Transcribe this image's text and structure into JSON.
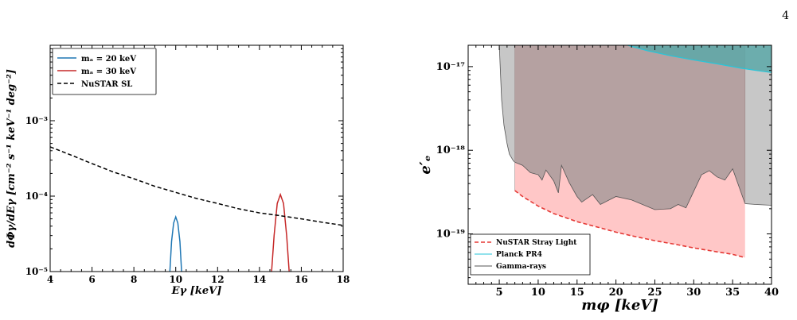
{
  "page_number": "4",
  "chart_data": [
    {
      "type": "line",
      "ylabel": "dΦγ/dEγ [cm⁻² s⁻¹ keV⁻¹ deg⁻²]",
      "xlabel": "Eγ [keV]",
      "xlim": [
        4,
        18
      ],
      "ylim": [
        1e-05,
        0.01
      ],
      "yscale": "log",
      "x_ticks": [
        "4",
        "6",
        "8",
        "10",
        "12",
        "14",
        "16",
        "18"
      ],
      "y_ticks": [
        "10⁻⁵",
        "10⁻⁴",
        "10⁻³"
      ],
      "legend_position": "top-left",
      "series": [
        {
          "name": "mₐ = 20 keV",
          "color": "#1f77b4",
          "style": "solid",
          "x": [
            9.72,
            9.8,
            9.9,
            10.0,
            10.1,
            10.2,
            10.28
          ],
          "y": [
            1e-05,
            2.5e-05,
            4.4e-05,
            5.3e-05,
            4.4e-05,
            2.5e-05,
            1e-05
          ]
        },
        {
          "name": "mₐ = 30 keV",
          "color": "#c62828",
          "style": "solid",
          "x": [
            14.58,
            14.7,
            14.85,
            15.0,
            15.15,
            15.3,
            15.42
          ],
          "y": [
            1e-05,
            3e-05,
            8e-05,
            0.000105,
            8e-05,
            3e-05,
            1e-05
          ]
        },
        {
          "name": "NuSTAR SL",
          "color": "#000000",
          "style": "dashed",
          "x": [
            4,
            5,
            6,
            7,
            8,
            9,
            10,
            11,
            12,
            13,
            14,
            15,
            16,
            17,
            18
          ],
          "y": [
            0.00045,
            0.00035,
            0.00027,
            0.00021,
            0.00017,
            0.000135,
            0.000112,
            9.3e-05,
            8e-05,
            6.8e-05,
            6e-05,
            5.5e-05,
            5e-05,
            4.5e-05,
            4.1e-05
          ]
        }
      ]
    },
    {
      "type": "area",
      "ylabel": "e′ₑ",
      "xlabel": "mφ [keV]",
      "xlim": [
        1,
        40
      ],
      "ylim": [
        2.5e-20,
        1.8e-17
      ],
      "yscale": "log",
      "x_ticks": [
        "5",
        "10",
        "15",
        "20",
        "25",
        "30",
        "35",
        "40"
      ],
      "y_ticks": [
        "10⁻¹⁹",
        "10⁻¹⁸",
        "10⁻¹⁷"
      ],
      "legend_position": "bottom-left",
      "series": [
        {
          "name": "NuSTAR Stray Light",
          "color": "#e53935",
          "style": "dashed",
          "fill": "#ffc7c7",
          "x": [
            7,
            8,
            10,
            12,
            15,
            18,
            20,
            22,
            25,
            28,
            30,
            33,
            35,
            36.6
          ],
          "y": [
            3.3e-19,
            2.8e-19,
            2.15e-19,
            1.75e-19,
            1.4e-19,
            1.18e-19,
            1.05e-19,
            9.5e-20,
            8.3e-20,
            7.4e-20,
            6.8e-20,
            6.1e-20,
            5.7e-20,
            5.2e-20
          ]
        },
        {
          "name": "Planck PR4",
          "color": "#26c6da",
          "style": "solid",
          "fill": "#5ca8a8",
          "x": [
            21.5,
            24,
            27,
            30,
            33,
            36,
            38,
            40
          ],
          "y": [
            1.8e-17,
            1.55e-17,
            1.35e-17,
            1.2e-17,
            1.08e-17,
            9.6e-18,
            9e-18,
            8.5e-18
          ]
        },
        {
          "name": "Gamma-rays",
          "color": "#555555",
          "style": "solid",
          "fill": "#bdbdbd",
          "x": [
            5,
            5.3,
            5.6,
            6,
            6.3,
            6.8,
            7,
            8,
            9,
            10,
            10.5,
            11,
            12,
            12.6,
            13,
            14,
            15,
            15.6,
            17,
            18,
            20,
            22,
            25,
            27,
            28,
            29,
            31,
            32,
            33,
            34,
            35,
            36.6,
            38,
            40
          ],
          "y": [
            1.8e-17,
            4e-18,
            2e-18,
            1.2e-18,
            9e-19,
            7.5e-19,
            7.2e-19,
            6.6e-19,
            5.4e-19,
            5.1e-19,
            4.4e-19,
            5.8e-19,
            4.3e-19,
            3.1e-19,
            6.6e-19,
            4.1e-19,
            2.8e-19,
            2.4e-19,
            2.95e-19,
            2.25e-19,
            2.8e-19,
            2.55e-19,
            1.95e-19,
            2e-19,
            2.25e-19,
            2.05e-19,
            5.1e-19,
            5.7e-19,
            4.8e-19,
            4.4e-19,
            6e-19,
            2.3e-19,
            2.25e-19,
            2.2e-19
          ]
        }
      ]
    }
  ]
}
